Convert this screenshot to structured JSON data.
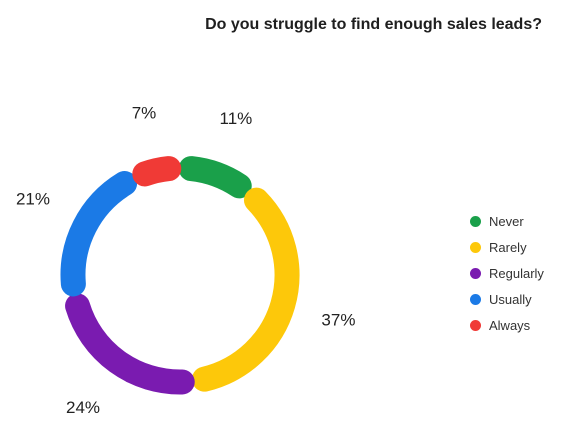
{
  "chart_data": {
    "type": "pie",
    "title": "Do you struggle to find enough sales leads?",
    "categories": [
      "Never",
      "Rarely",
      "Regularly",
      "Usually",
      "Always"
    ],
    "values": [
      11,
      37,
      24,
      21,
      7
    ],
    "labels": [
      "11%",
      "37%",
      "24%",
      "21%",
      "7%"
    ],
    "colors": [
      "#1aa04a",
      "#fdc80a",
      "#7a1bb0",
      "#1b7ae6",
      "#f03a36"
    ],
    "unit": "%",
    "style": "donut",
    "legend_position": "right"
  }
}
